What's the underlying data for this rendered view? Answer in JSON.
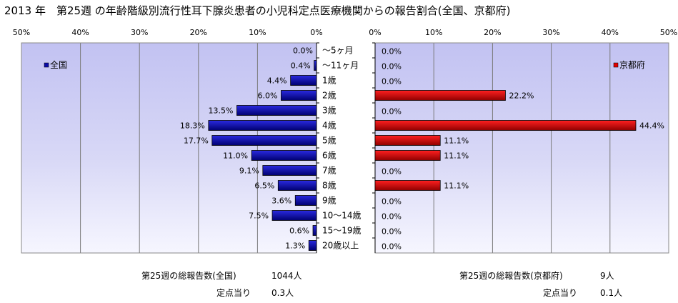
{
  "title": "2013 年　第25週 の年齢階級別流行性耳下腺炎患者の小児科定点医療機関からの報告割合(全国、京都府)",
  "colors": {
    "national": "#0a0aa6",
    "kyoto": "#e00000",
    "plot_bg": "#c6c6f2",
    "grid": "#7a7a7a"
  },
  "chart_data": [
    {
      "type": "bar",
      "orientation": "horizontal",
      "direction": "right-to-left",
      "legend": "全国",
      "legend_position": "top-left",
      "xlim": [
        0,
        50
      ],
      "tick_labels": [
        "50%",
        "40%",
        "30%",
        "20%",
        "10%",
        "0%"
      ],
      "grid": true,
      "categories": [
        "～5ヶ月",
        "～11ヶ月",
        "1歳",
        "2歳",
        "3歳",
        "4歳",
        "5歳",
        "6歳",
        "7歳",
        "8歳",
        "9歳",
        "10～14歳",
        "15～19歳",
        "20歳以上"
      ],
      "values": [
        0.0,
        0.4,
        4.4,
        6.0,
        13.5,
        18.3,
        17.7,
        11.0,
        9.1,
        6.5,
        3.6,
        7.5,
        0.6,
        1.3
      ],
      "value_labels": [
        "0.0%",
        "0.4%",
        "4.4%",
        "6.0%",
        "13.5%",
        "18.3%",
        "17.7%",
        "11.0%",
        "9.1%",
        "6.5%",
        "3.6%",
        "7.5%",
        "0.6%",
        "1.3%"
      ]
    },
    {
      "type": "bar",
      "orientation": "horizontal",
      "direction": "left-to-right",
      "legend": "京都府",
      "legend_position": "top-right",
      "xlim": [
        0,
        50
      ],
      "tick_labels": [
        "0%",
        "10%",
        "20%",
        "30%",
        "40%",
        "50%"
      ],
      "grid": true,
      "categories": [
        "～5ヶ月",
        "～11ヶ月",
        "1歳",
        "2歳",
        "3歳",
        "4歳",
        "5歳",
        "6歳",
        "7歳",
        "8歳",
        "9歳",
        "10～14歳",
        "15～19歳",
        "20歳以上"
      ],
      "values": [
        0.0,
        0.0,
        0.0,
        22.2,
        0.0,
        44.4,
        11.1,
        11.1,
        0.0,
        11.1,
        0.0,
        0.0,
        0.0,
        0.0
      ],
      "value_labels": [
        "0.0%",
        "0.0%",
        "0.0%",
        "22.2%",
        "0.0%",
        "44.4%",
        "11.1%",
        "11.1%",
        "0.0%",
        "11.1%",
        "0.0%",
        "0.0%",
        "0.0%",
        "0.0%"
      ]
    }
  ],
  "footer": {
    "national_total_label": "第25週の総報告数(全国)",
    "national_total_value": "1044人",
    "national_per_label": "定点当り",
    "national_per_value": "0.3人",
    "kyoto_total_label": "第25週の総報告数(京都府)",
    "kyoto_total_value": "9人",
    "kyoto_per_label": "定点当り",
    "kyoto_per_value": "0.1人"
  }
}
